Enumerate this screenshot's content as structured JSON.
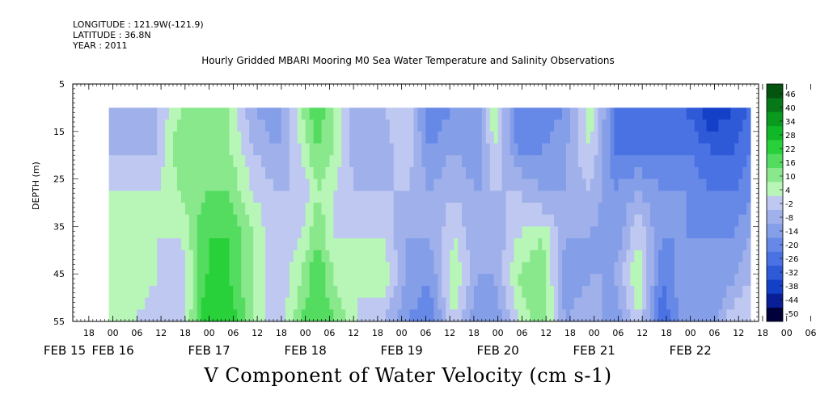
{
  "header": {
    "longitude": "LONGITUDE : 121.9W(-121.9)",
    "latitude": "LATITUDE : 36.8N",
    "year": "YEAR : 2011",
    "title": "Hourly Gridded MBARI Mooring M0 Sea Water Temperature and Salinity Observations"
  },
  "chart_data": {
    "type": "heatmap",
    "title": "Hourly Gridded MBARI Mooring M0 Sea Water Temperature and Salinity Observations",
    "variable": "V Component of Water Velocity (cm s-1)",
    "ylabel": "DEPTH (m)",
    "yticks": [
      5,
      15,
      25,
      35,
      45,
      55
    ],
    "ylim": [
      5,
      55
    ],
    "y_inverted": true,
    "x_hour_ticks": [
      "18",
      "00",
      "06",
      "12",
      "18",
      "00",
      "06",
      "12",
      "18",
      "00",
      "06",
      "12",
      "18",
      "00",
      "06",
      "12",
      "18",
      "00",
      "06",
      "12",
      "18",
      "00",
      "06",
      "12",
      "18",
      "00",
      "06",
      "12",
      "18",
      "00",
      "06",
      "12"
    ],
    "x_date_labels": [
      "FEB 15",
      "FEB 16",
      "FEB 17",
      "FEB 18",
      "FEB 19",
      "FEB 20",
      "FEB 21",
      "FEB 22"
    ],
    "x_start_hour": 14,
    "x_end_hour": 185,
    "data_start_hour": 23,
    "data_end_hour": 183,
    "data_depth_top": 10,
    "data_depth_bottom": 55,
    "colorbar_levels": [
      -50,
      -44,
      -38,
      -32,
      -26,
      -20,
      -14,
      -8,
      -2,
      4,
      10,
      16,
      22,
      28,
      34,
      40,
      46
    ],
    "colorbar_labels": [
      "46",
      "40",
      "34",
      "28",
      "22",
      "16",
      "10",
      "4",
      "-2",
      "-8",
      "-14",
      "-20",
      "-26",
      "-32",
      "-38",
      "-44",
      "-50"
    ],
    "colorbar_colors": [
      "#00003a",
      "#0a1e96",
      "#1440c8",
      "#2e5ad8",
      "#4a72e2",
      "#6688e6",
      "#849ee8",
      "#a0b0ea",
      "#bec8f0",
      "#b8f6b8",
      "#8ae88c",
      "#54dc60",
      "#28d03a",
      "#10b828",
      "#0a9a1e",
      "#067818",
      "#045410"
    ],
    "depth_profile": [
      {
        "hour": 23,
        "values": [
          -8,
          -2,
          4,
          4,
          10,
          10
        ]
      },
      {
        "hour": 29,
        "values": [
          -8,
          -2,
          4,
          10,
          10,
          4
        ]
      },
      {
        "hour": 35,
        "values": [
          -2,
          -2,
          4,
          4,
          4,
          -2
        ]
      },
      {
        "hour": 41,
        "values": [
          10,
          16,
          10,
          4,
          -2,
          -2
        ]
      },
      {
        "hour": 47,
        "values": [
          16,
          16,
          16,
          22,
          22,
          28
        ]
      },
      {
        "hour": 53,
        "values": [
          10,
          10,
          16,
          22,
          22,
          28
        ]
      },
      {
        "hour": 59,
        "values": [
          -8,
          -2,
          4,
          10,
          10,
          10
        ]
      },
      {
        "hour": 65,
        "values": [
          -14,
          -8,
          -2,
          -2,
          -2,
          -2
        ]
      },
      {
        "hour": 71,
        "values": [
          10,
          4,
          -2,
          4,
          10,
          16
        ]
      },
      {
        "hour": 75,
        "values": [
          22,
          16,
          10,
          16,
          22,
          22
        ]
      },
      {
        "hour": 79,
        "values": [
          10,
          10,
          4,
          4,
          10,
          16
        ]
      },
      {
        "hour": 85,
        "values": [
          -8,
          -8,
          -2,
          4,
          4,
          4
        ]
      },
      {
        "hour": 91,
        "values": [
          -2,
          -8,
          -2,
          4,
          10,
          -2
        ]
      },
      {
        "hour": 97,
        "values": [
          4,
          4,
          -2,
          -8,
          -8,
          -14
        ]
      },
      {
        "hour": 103,
        "values": [
          -20,
          -14,
          -8,
          -8,
          -14,
          -20
        ]
      },
      {
        "hour": 109,
        "values": [
          -14,
          -8,
          -2,
          4,
          10,
          4
        ]
      },
      {
        "hour": 115,
        "values": [
          -14,
          -14,
          -8,
          -8,
          -8,
          -14
        ]
      },
      {
        "hour": 119,
        "values": [
          10,
          4,
          -2,
          -8,
          -8,
          -14
        ]
      },
      {
        "hour": 125,
        "values": [
          -20,
          -14,
          -2,
          4,
          10,
          4
        ]
      },
      {
        "hour": 131,
        "values": [
          -20,
          -14,
          -8,
          10,
          16,
          16
        ]
      },
      {
        "hour": 137,
        "values": [
          -14,
          -8,
          -8,
          -8,
          -14,
          -8
        ]
      },
      {
        "hour": 143,
        "values": [
          10,
          4,
          -2,
          -8,
          -8,
          -2
        ]
      },
      {
        "hour": 149,
        "values": [
          -20,
          -20,
          -14,
          -14,
          -8,
          -14
        ]
      },
      {
        "hour": 155,
        "values": [
          -26,
          -20,
          -8,
          4,
          10,
          4
        ]
      },
      {
        "hour": 161,
        "values": [
          -26,
          -20,
          -14,
          -14,
          -20,
          -26
        ]
      },
      {
        "hour": 167,
        "values": [
          -26,
          -20,
          -14,
          -14,
          -8,
          -8
        ]
      },
      {
        "hour": 173,
        "values": [
          -38,
          -26,
          -20,
          -14,
          -14,
          -14
        ]
      },
      {
        "hour": 179,
        "values": [
          -32,
          -26,
          -20,
          -14,
          -8,
          4
        ]
      },
      {
        "hour": 183,
        "values": [
          -26,
          -20,
          -14,
          -8,
          -2,
          4
        ]
      }
    ]
  }
}
